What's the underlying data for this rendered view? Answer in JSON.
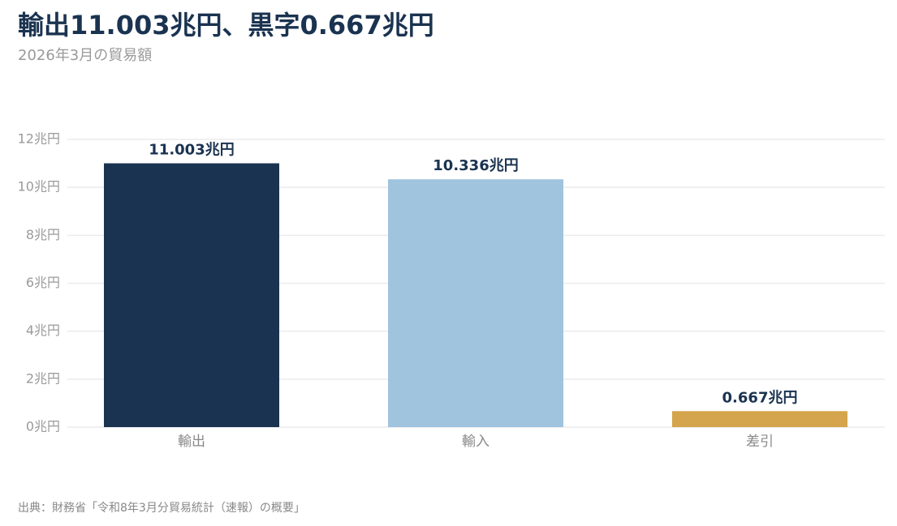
{
  "chart_data": {
    "type": "bar",
    "title": "輸出11.003兆円、黒字0.667兆円",
    "subtitle": "2026年3月の貿易額",
    "categories": [
      "輸出",
      "輸入",
      "差引"
    ],
    "values": [
      11.003,
      10.336,
      0.667
    ],
    "value_labels": [
      "11.003兆円",
      "10.336兆円",
      "0.667兆円"
    ],
    "colors": [
      "#1a3350",
      "#a0c3de",
      "#d4a54c"
    ],
    "ylim": [
      0,
      12
    ],
    "yticks": [
      {
        "value": 0,
        "label": "0兆円"
      },
      {
        "value": 2,
        "label": "2兆円"
      },
      {
        "value": 4,
        "label": "4兆円"
      },
      {
        "value": 6,
        "label": "6兆円"
      },
      {
        "value": 8,
        "label": "8兆円"
      },
      {
        "value": 10,
        "label": "10兆円"
      },
      {
        "value": 12,
        "label": "12兆円"
      }
    ],
    "grid": true,
    "source": "出典：財務省「令和8年3月分貿易統計（速報）の概要」"
  }
}
